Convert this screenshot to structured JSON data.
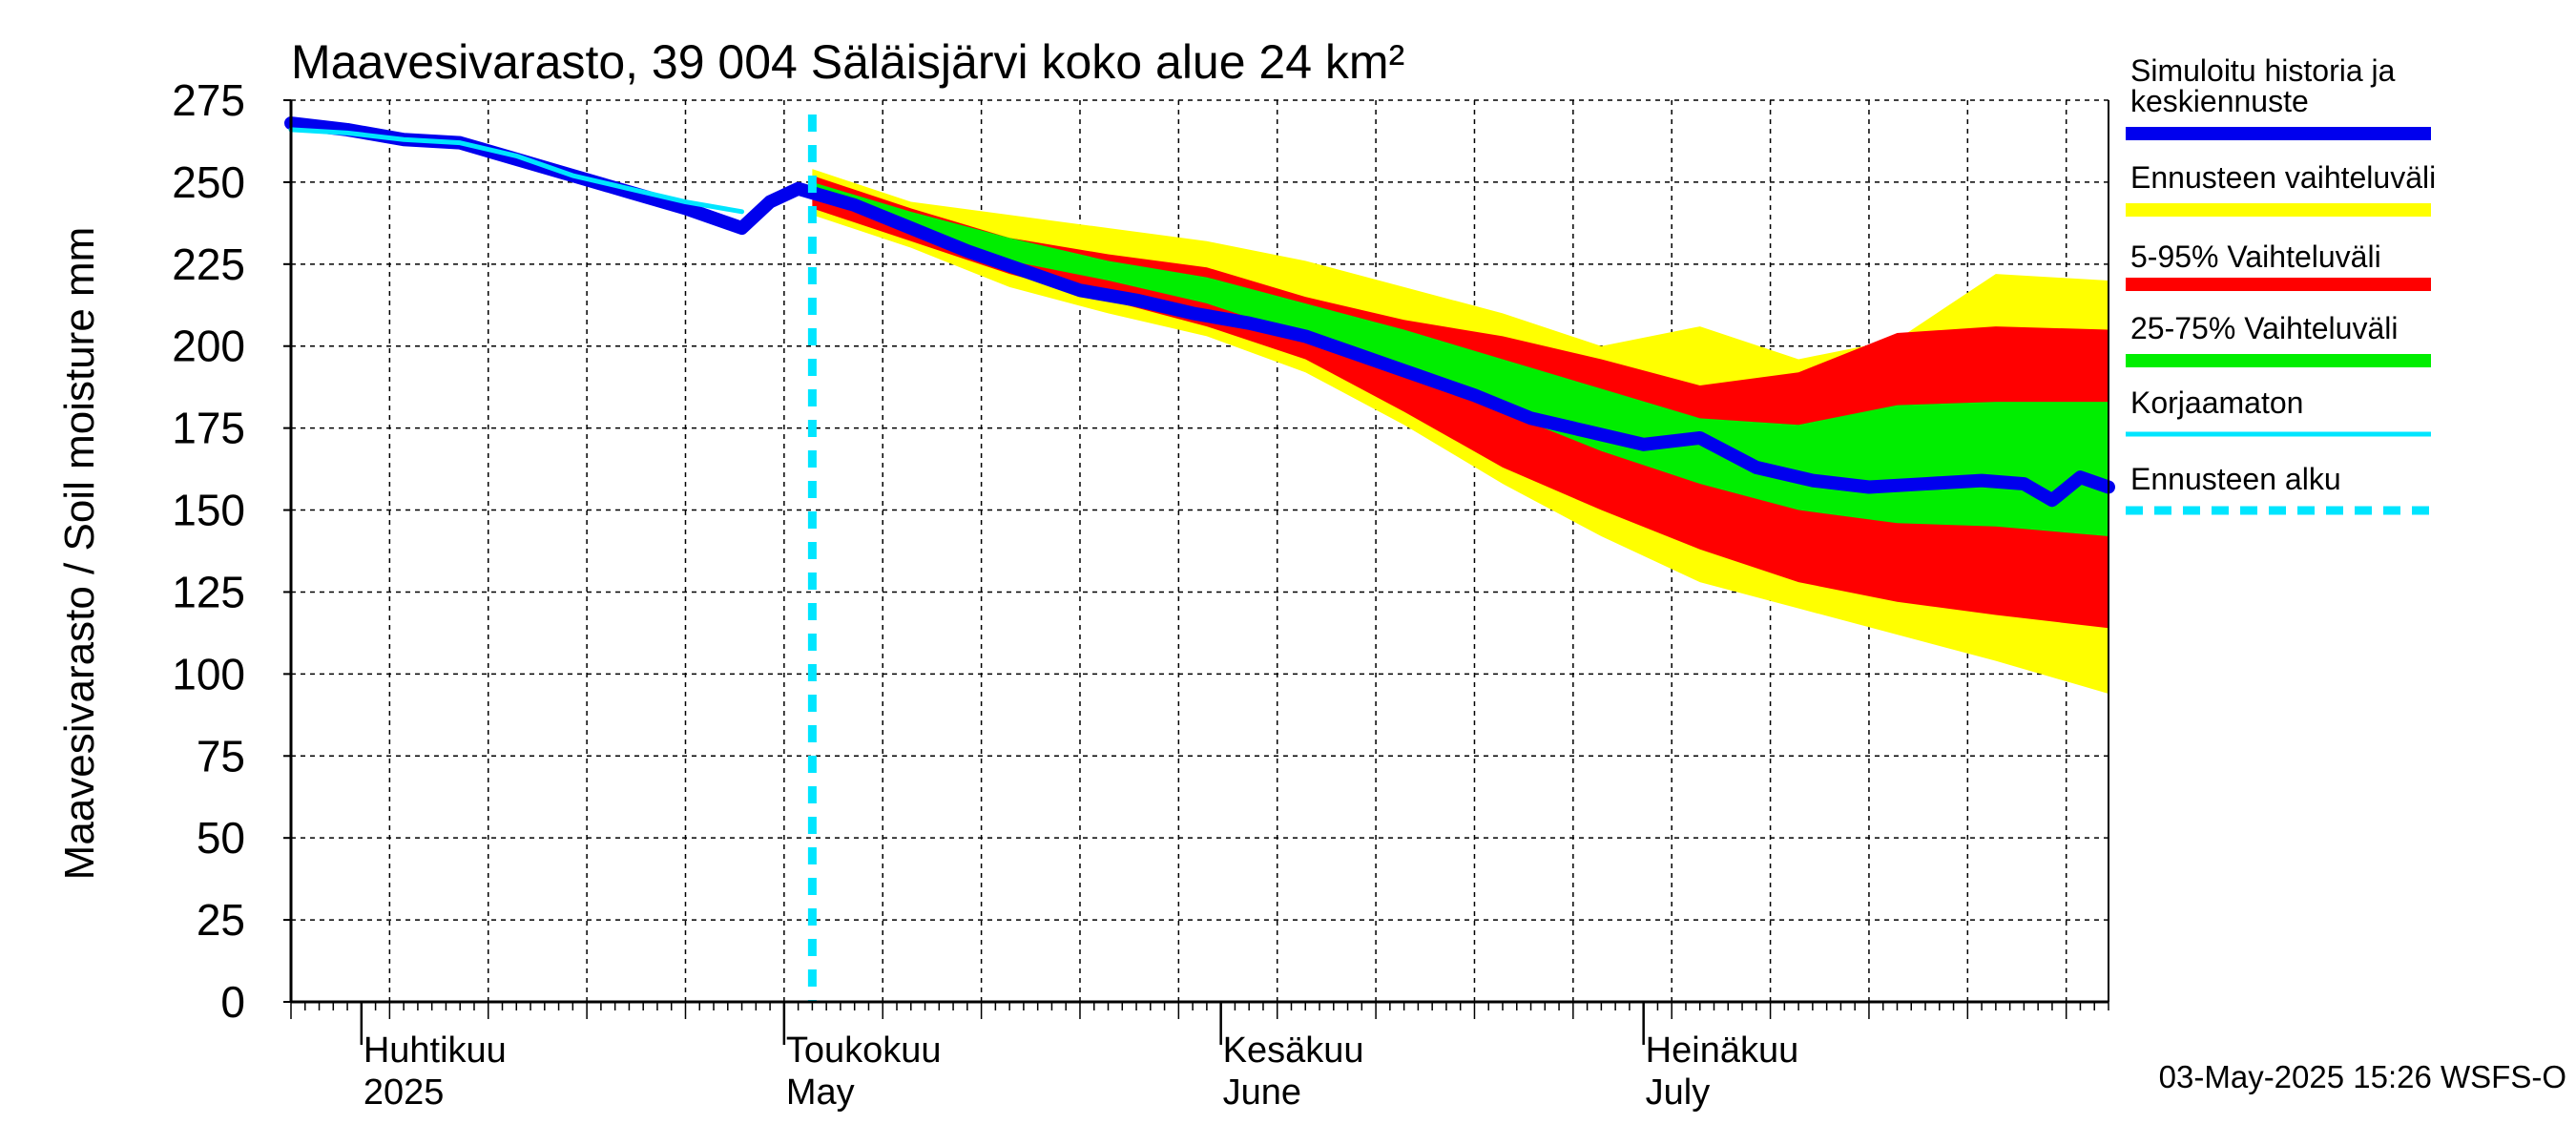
{
  "chart_data": {
    "type": "area",
    "title": "Maavesivarasto, 39 004 Säläisjärvi koko alue 24 km²",
    "ylabel": "Maavesivarasto / Soil moisture   mm",
    "xlabel": "",
    "ylim": [
      0,
      275
    ],
    "yticks": [
      0,
      25,
      50,
      75,
      100,
      125,
      150,
      175,
      200,
      225,
      250,
      275
    ],
    "xlim": [
      "2025-03-27",
      "2025-08-03"
    ],
    "grid": true,
    "legend_position": "right",
    "forecast_start": "2025-05-03",
    "month_labels": [
      {
        "date": "2025-04-01",
        "line1": "Huhtikuu",
        "line2": "2025"
      },
      {
        "date": "2025-05-01",
        "line1": "Toukokuu",
        "line2": "May"
      },
      {
        "date": "2025-06-01",
        "line1": "Kesäkuu",
        "line2": "June"
      },
      {
        "date": "2025-07-01",
        "line1": "Heinäkuu",
        "line2": "July"
      }
    ],
    "legend": [
      {
        "label": "Simuloitu historia ja keskiennuste",
        "line1": "Simuloitu historia ja",
        "line2": "keskiennuste",
        "color": "#0000ee",
        "style": "thick"
      },
      {
        "label": "Ennusteen vaihteluväli",
        "color": "#ffff00",
        "style": "band"
      },
      {
        "label": "5-95% Vaihteluväli",
        "color": "#ff0000",
        "style": "band"
      },
      {
        "label": "25-75% Vaihteluväli",
        "color": "#00ee00",
        "style": "band"
      },
      {
        "label": "Korjaamaton",
        "color": "#00e5ff",
        "style": "thin"
      },
      {
        "label": "Ennusteen alku",
        "color": "#00e5ff",
        "style": "dashed"
      }
    ],
    "footer": "03-May-2025 15:26 WSFS-O",
    "series": [
      {
        "name": "Simuloitu historia ja keskiennuste",
        "color": "#0000ee",
        "x": [
          "2025-03-27",
          "2025-03-31",
          "2025-04-04",
          "2025-04-08",
          "2025-04-12",
          "2025-04-16",
          "2025-04-20",
          "2025-04-24",
          "2025-04-28",
          "2025-04-30",
          "2025-05-02",
          "2025-05-06",
          "2025-05-10",
          "2025-05-14",
          "2025-05-18",
          "2025-05-22",
          "2025-05-26",
          "2025-05-30",
          "2025-06-03",
          "2025-06-07",
          "2025-06-11",
          "2025-06-15",
          "2025-06-19",
          "2025-06-23",
          "2025-06-27",
          "2025-07-01",
          "2025-07-05",
          "2025-07-09",
          "2025-07-13",
          "2025-07-17",
          "2025-07-21",
          "2025-07-25",
          "2025-07-28",
          "2025-07-30",
          "2025-08-01",
          "2025-08-03"
        ],
        "values": [
          268,
          266,
          263,
          262,
          257,
          252,
          247,
          242,
          236,
          244,
          248,
          243,
          236,
          229,
          223,
          217,
          214,
          210,
          207,
          203,
          197,
          191,
          185,
          178,
          174,
          170,
          172,
          163,
          159,
          157,
          158,
          159,
          158,
          153,
          160,
          157
        ]
      },
      {
        "name": "Korjaamaton",
        "color": "#00e5ff",
        "x": [
          "2025-03-27",
          "2025-03-31",
          "2025-04-04",
          "2025-04-08",
          "2025-04-12",
          "2025-04-16",
          "2025-04-20",
          "2025-04-24",
          "2025-04-28"
        ],
        "values": [
          266,
          265,
          263,
          262,
          258,
          252,
          248,
          244,
          241
        ]
      }
    ],
    "bands": [
      {
        "name": "Ennusteen vaihteluväli",
        "color": "#ffff00",
        "x": [
          "2025-05-03",
          "2025-05-10",
          "2025-05-17",
          "2025-05-24",
          "2025-05-31",
          "2025-06-07",
          "2025-06-14",
          "2025-06-21",
          "2025-06-28",
          "2025-07-05",
          "2025-07-12",
          "2025-07-19",
          "2025-07-26",
          "2025-08-03"
        ],
        "lower": [
          240,
          230,
          218,
          210,
          203,
          192,
          176,
          158,
          142,
          128,
          120,
          112,
          104,
          94
        ],
        "upper": [
          254,
          244,
          240,
          236,
          232,
          226,
          218,
          210,
          200,
          206,
          196,
          202,
          222,
          220
        ]
      },
      {
        "name": "5-95% Vaihteluväli",
        "color": "#ff0000",
        "x": [
          "2025-05-03",
          "2025-05-10",
          "2025-05-17",
          "2025-05-24",
          "2025-05-31",
          "2025-06-07",
          "2025-06-14",
          "2025-06-21",
          "2025-06-28",
          "2025-07-05",
          "2025-07-12",
          "2025-07-19",
          "2025-07-26",
          "2025-08-03"
        ],
        "lower": [
          242,
          232,
          222,
          214,
          206,
          196,
          180,
          163,
          150,
          138,
          128,
          122,
          118,
          114
        ],
        "upper": [
          252,
          242,
          233,
          228,
          224,
          215,
          208,
          203,
          196,
          188,
          192,
          204,
          206,
          205
        ]
      },
      {
        "name": "25-75% Vaihteluväli",
        "color": "#00ee00",
        "x": [
          "2025-05-03",
          "2025-05-10",
          "2025-05-17",
          "2025-05-24",
          "2025-05-31",
          "2025-06-07",
          "2025-06-14",
          "2025-06-21",
          "2025-06-28",
          "2025-07-05",
          "2025-07-12",
          "2025-07-19",
          "2025-07-26",
          "2025-08-03"
        ],
        "lower": [
          246,
          237,
          226,
          220,
          213,
          203,
          193,
          180,
          168,
          158,
          150,
          146,
          145,
          142
        ],
        "upper": [
          250,
          241,
          233,
          226,
          221,
          213,
          205,
          196,
          187,
          178,
          176,
          182,
          183,
          183
        ]
      }
    ]
  }
}
